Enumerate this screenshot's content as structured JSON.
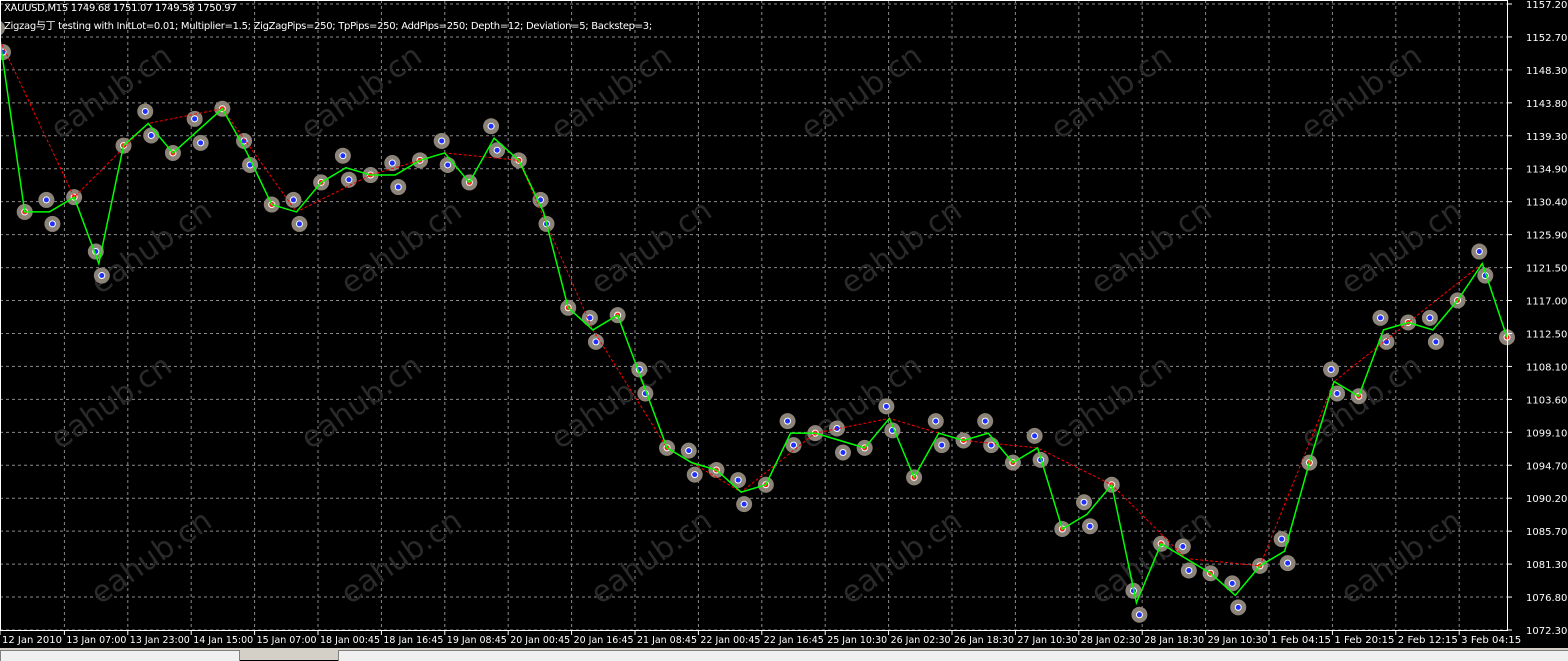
{
  "header": {
    "symbol_line": "XAUUSD,M15  1749.68 1751.07 1749.58 1750.97",
    "ea_line": "Zigzag与丁 testing with InitLot=0.01; Multiplier=1.5; ZigZagPips=250; TpPips=250; AddPips=250; Depth=12; Deviation=5; Backstep=3;"
  },
  "watermark": "eahub.cn",
  "colors": {
    "background": "#000000",
    "grid": "#8a8a8a",
    "price": "#00ff00",
    "zigzag_up": "#ff0000",
    "zigzag_down": "#0000ff",
    "marker": "#8c8478",
    "axis_text": "#ffffff"
  },
  "chart_data": {
    "type": "line",
    "ylim": [
      1072.3,
      1157.2
    ],
    "y_ticks": [
      "1157.20",
      "1152.70",
      "1148.30",
      "1143.80",
      "1139.30",
      "1134.90",
      "1130.40",
      "1125.90",
      "1121.50",
      "1117.00",
      "1112.50",
      "1108.10",
      "1103.60",
      "1099.10",
      "1094.70",
      "1090.20",
      "1085.70",
      "1081.30",
      "1076.80",
      "1072.30"
    ],
    "x_ticks": [
      "12 Jan 2010",
      "13 Jan 07:00",
      "13 Jan 23:00",
      "14 Jan 15:00",
      "15 Jan 07:00",
      "18 Jan 00:45",
      "18 Jan 16:45",
      "19 Jan 08:45",
      "20 Jan 00:45",
      "20 Jan 16:45",
      "21 Jan 08:45",
      "22 Jan 00:45",
      "22 Jan 16:45",
      "25 Jan 10:30",
      "26 Jan 02:30",
      "26 Jan 18:30",
      "27 Jan 10:30",
      "28 Jan 02:30",
      "28 Jan 18:30",
      "29 Jan 10:30",
      "1 Feb 04:15",
      "1 Feb 20:15",
      "2 Feb 12:15",
      "3 Feb 04:15"
    ],
    "grid": true,
    "series": [
      {
        "values": [
          1152.3,
          1129,
          1129,
          1131,
          1122,
          1138,
          1141,
          1137,
          1140,
          1143,
          1137,
          1130,
          1129,
          1133,
          1135,
          1134,
          1134,
          1136,
          1137,
          1133,
          1139,
          1136,
          1129,
          1116,
          1113,
          1115,
          1106,
          1097,
          1095,
          1094,
          1091,
          1092,
          1099,
          1099,
          1098,
          1097,
          1101,
          1093,
          1099,
          1098,
          1099,
          1095,
          1097,
          1086,
          1088,
          1092,
          1076,
          1084,
          1082,
          1080,
          1077,
          1081,
          1083,
          1095,
          1106,
          1104,
          1113,
          1114,
          1113,
          1117,
          1122,
          1112
        ]
      }
    ]
  }
}
